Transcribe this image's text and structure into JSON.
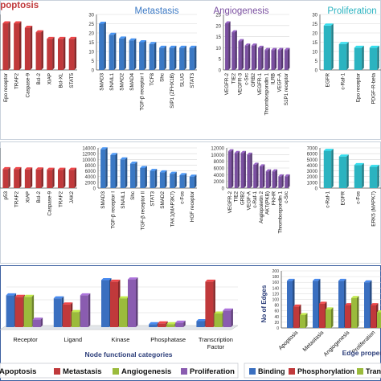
{
  "colors": {
    "apoptosis": "#c0393b",
    "metastasis": "#3a78c4",
    "angiogenesis": "#7a4fa0",
    "proliferation": "#2bb3c0",
    "binding": "#3a6fc0",
    "phosphorylation": "#c0393b",
    "transcription": "#9bbb3c",
    "purple": "#8a5cb0",
    "axis": "#555555",
    "grid": "#d8d8d8",
    "panel_border": "#9aa7b4",
    "bottom_border": "#3b5fa0"
  },
  "chart_data": [
    {
      "type": "bar",
      "title": "Apoptosis",
      "color_key": "apoptosis",
      "categories": [
        "Epo receptor",
        "TRAF2",
        "Caspase-9",
        "Bcl-2",
        "XIAP",
        "Bcl-XL",
        "STAT5"
      ],
      "values": [
        21,
        21,
        19,
        17,
        14,
        14,
        14
      ],
      "ylim": [
        0,
        25
      ],
      "yticks": []
    },
    {
      "type": "bar",
      "title": "Metastasis",
      "color_key": "metastasis",
      "categories": [
        "SMAD3",
        "SNAIL1",
        "SMAD2",
        "SMAD4",
        "TGF-β receptor I",
        "TCF8",
        "Shc",
        "SIP1 (ZFHX1B)",
        "SLUG",
        "STAT3"
      ],
      "values": [
        25,
        19,
        17,
        16,
        15,
        14,
        12,
        12,
        12,
        12
      ],
      "ylim": [
        0,
        30
      ],
      "yticks": [
        "0",
        "5",
        "10",
        "15",
        "20",
        "25",
        "30"
      ]
    },
    {
      "type": "bar",
      "title": "Angiogenesis",
      "color_key": "angiogenesis",
      "categories": [
        "VEGFR-2",
        "TIE2",
        "VEGFR-3",
        "c-Src",
        "GRB2",
        "VEGFR-1",
        "Thrombospondin 1",
        "ILRB",
        "VEGF-A",
        "S1P1 receptor"
      ],
      "values": [
        21,
        17,
        13,
        11,
        11,
        10,
        9,
        9,
        9,
        9
      ],
      "ylim": [
        0,
        25
      ],
      "yticks": [
        "0",
        "5",
        "10",
        "15",
        "20",
        "25"
      ]
    },
    {
      "type": "bar",
      "title": "Proliferation",
      "color_key": "proliferation",
      "categories": [
        "EGFR",
        "c-Raf-1",
        "Epo receptor",
        "PDGF-R-beta"
      ],
      "values": [
        24,
        14,
        12,
        12
      ],
      "ylim": [
        0,
        30
      ],
      "yticks": [
        "0",
        "5",
        "10",
        "15",
        "20",
        "25",
        "30"
      ]
    },
    {
      "type": "bar",
      "title": "",
      "color_key": "apoptosis",
      "categories": [
        "p53",
        "TRAF2",
        "XIAP",
        "Bcl-2",
        "Caspase-9",
        "TRAF2",
        "JAK2"
      ],
      "values": [
        6600,
        6600,
        6500,
        6500,
        6400,
        6400,
        6400
      ],
      "ylim": [
        0,
        14000
      ],
      "yticks": []
    },
    {
      "type": "bar",
      "title": "",
      "color_key": "metastasis",
      "categories": [
        "SMAD3",
        "TGF-β receptor I",
        "SNAIL1",
        "Shc",
        "TGF-β receptor II",
        "STAT3",
        "SMAD2",
        "TAK1(MAP3K7)",
        "c-Fos",
        "HGF receptor"
      ],
      "values": [
        13500,
        11500,
        10000,
        8500,
        7000,
        6000,
        5500,
        5000,
        4500,
        4000
      ],
      "ylim": [
        0,
        14000
      ],
      "yticks": [
        "0",
        "2000",
        "4000",
        "6000",
        "8000",
        "10000",
        "12000",
        "14000"
      ]
    },
    {
      "type": "bar",
      "title": "",
      "color_key": "angiogenesis",
      "categories": [
        "VEGFR-2",
        "TIE2",
        "GRB2",
        "VEGF-A",
        "c-Raf-1",
        "Angiopoietin 2",
        "AKT(PKB)",
        "FKHR",
        "Thrombospondin 1",
        "c-Src"
      ],
      "values": [
        11000,
        10500,
        10500,
        10000,
        7000,
        6500,
        5000,
        5000,
        3500,
        3500
      ],
      "ylim": [
        0,
        12000
      ],
      "yticks": [
        "0",
        "2000",
        "4000",
        "6000",
        "8000",
        "10000",
        "12000"
      ]
    },
    {
      "type": "bar",
      "title": "",
      "color_key": "proliferation",
      "categories": [
        "c-Raf-1",
        "EGFR",
        "c-Fos",
        "ERK5 (MAPK7)"
      ],
      "values": [
        6500,
        5500,
        4000,
        3700
      ],
      "ylim": [
        0,
        7000
      ],
      "yticks": [
        "0",
        "1000",
        "2000",
        "3000",
        "4000",
        "5000",
        "6000",
        "7000"
      ]
    },
    {
      "type": "bar",
      "title": "",
      "xlabel": "Node functional categories",
      "categories": [
        "Receptor",
        "Ligand",
        "Kinase",
        "Phosphatase",
        "Transcription Factor"
      ],
      "series": [
        {
          "name": "Apoptosis",
          "color_key": "binding",
          "values": [
            42,
            38,
            62,
            4,
            8
          ]
        },
        {
          "name": "Metastasis",
          "color_key": "apoptosis",
          "values": [
            40,
            30,
            60,
            5,
            60
          ]
        },
        {
          "name": "Angiogenesis",
          "color_key": "transcription",
          "values": [
            40,
            20,
            38,
            4,
            18
          ]
        },
        {
          "name": "Proliferation",
          "color_key": "purple",
          "values": [
            10,
            42,
            63,
            6,
            22
          ]
        }
      ],
      "ylim": [
        0,
        70
      ]
    },
    {
      "type": "bar",
      "title": "",
      "xlabel": "Edge properties",
      "ylabel": "No of Edges",
      "categories": [
        "Apoptosis",
        "Metastasis",
        "Angiogenesis",
        "Proliferation"
      ],
      "series": [
        {
          "name": "Binding",
          "color_key": "binding",
          "values": [
            165,
            165,
            165,
            160
          ]
        },
        {
          "name": "Phosphorylation",
          "color_key": "phosphorylation",
          "values": [
            75,
            85,
            80,
            80
          ]
        },
        {
          "name": "Transcription",
          "color_key": "transcription",
          "values": [
            45,
            65,
            105,
            55
          ]
        }
      ],
      "ylim": [
        0,
        200
      ],
      "yticks": [
        "0",
        "20",
        "40",
        "60",
        "80",
        "100",
        "120",
        "140",
        "160",
        "180",
        "200"
      ]
    }
  ],
  "legend_left": {
    "items": [
      {
        "label": "Apoptosis",
        "color_key": "binding"
      },
      {
        "label": "Metastasis",
        "color_key": "apoptosis"
      },
      {
        "label": "Angiogenesis",
        "color_key": "transcription"
      },
      {
        "label": "Proliferation",
        "color_key": "purple"
      }
    ]
  },
  "legend_right": {
    "items": [
      {
        "label": "Binding",
        "color_key": "binding"
      },
      {
        "label": "Phosphorylation",
        "color_key": "phosphorylation"
      },
      {
        "label": "Transcri",
        "color_key": "transcription"
      }
    ]
  }
}
